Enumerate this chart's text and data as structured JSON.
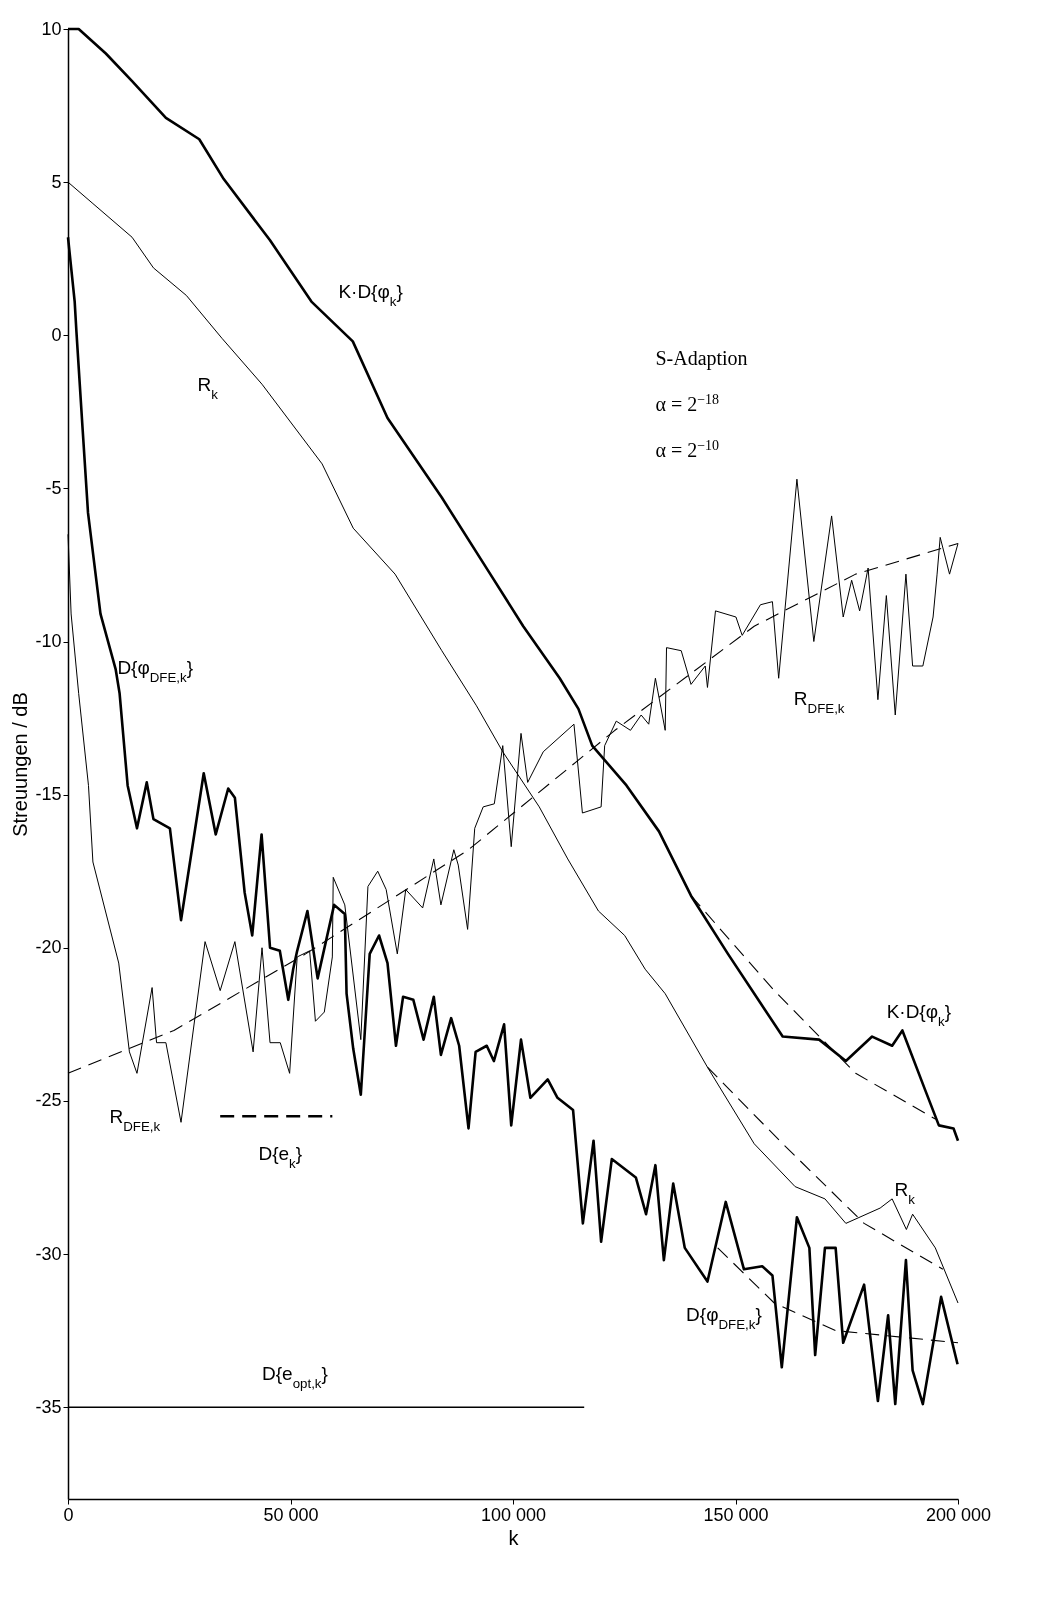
{
  "chart_data": {
    "type": "line",
    "xlabel": "k",
    "ylabel": "Streuungen / dB",
    "xlim": [
      0,
      200000
    ],
    "ylim": [
      -38,
      10
    ],
    "xticks": [
      0,
      {
        "value": 50000,
        "label": "50 000"
      },
      {
        "value": 100000,
        "label": "100 000"
      },
      {
        "value": 150000,
        "label": "150 000"
      },
      {
        "value": 200000,
        "label": "200 000"
      }
    ],
    "yticks": [
      10,
      5,
      0,
      -5,
      -10,
      -15,
      -20,
      -25,
      -30,
      -35
    ],
    "grid": false,
    "series": [
      {
        "name": "K·D{φ$_{k}$}",
        "color": "#000000",
        "line_style": "solid",
        "x": [
          0,
          2400,
          8500,
          14400,
          22000,
          29500,
          35000,
          45400,
          54700,
          64000,
          71800,
          84000,
          94900,
          102300,
          110500,
          114700,
          117800,
          125500,
          132800,
          140000,
          148300,
          160600,
          168800,
          174800,
          180700,
          185200,
          187500,
          192500,
          195700,
          199000,
          200000
        ],
        "values": [
          10,
          10,
          9.2,
          8.3,
          7.1,
          6.4,
          5.1,
          3.1,
          1.1,
          -0.2,
          -2.7,
          -5.3,
          -7.8,
          -9.5,
          -11.2,
          -12.2,
          -13.4,
          -14.7,
          -16.2,
          -18.3,
          -20.2,
          -22.9,
          -23,
          -23.7,
          -22.9,
          -23.2,
          -22.7,
          -24.6,
          -25.8,
          -25.9,
          -26.3
        ]
      },
      {
        "name": "R$_{k}$",
        "color": "#000000",
        "line_style": "solid",
        "x": [
          0,
          5600,
          14400,
          19200,
          26600,
          34600,
          43600,
          57100,
          64100,
          73500,
          84000,
          91800,
          97700,
          105900,
          112300,
          119200,
          125100,
          129700,
          134200,
          143700,
          154200,
          163400,
          170100,
          174800,
          182500,
          185200,
          188400,
          189800,
          194900,
          200000
        ],
        "values": [
          5,
          4.3,
          3.2,
          2.2,
          1.3,
          -0.1,
          -1.6,
          -4.2,
          -6.3,
          -7.8,
          -10.3,
          -12.1,
          -13.6,
          -15.4,
          -17.1,
          -18.8,
          -19.6,
          -20.7,
          -21.5,
          -23.9,
          -26.4,
          -27.8,
          -28.2,
          -29,
          -28.5,
          -28.2,
          -29.2,
          -28.7,
          -29.8,
          -31.6
        ]
      },
      {
        "name": "D{φ$_{DFE,k}$}",
        "color": "#000000",
        "line_style": "solid",
        "x": [
          0,
          1500,
          1900,
          3300,
          4500,
          7300,
          10700,
          11600,
          13400,
          15500,
          17700,
          19200,
          22900,
          25400,
          30500,
          33200,
          36000,
          37500,
          39700,
          41400,
          43500,
          45400,
          47600,
          49500,
          50600,
          51500,
          53800,
          56100,
          59800,
          62200,
          62600,
          64100,
          65800,
          67800,
          69900,
          71800,
          73700,
          75300,
          77600,
          79900,
          82200,
          83800,
          86100,
          87900,
          90000,
          91600,
          94100,
          95700,
          98000,
          99600,
          101800,
          103900,
          107800,
          110000,
          113500,
          115700,
          118100,
          119800,
          122200,
          127600,
          129900,
          132000,
          133900,
          136000,
          138600,
          143700,
          147800,
          151900,
          156000,
          158300,
          160400,
          163800,
          166600,
          167900,
          170100,
          172500,
          174200,
          178900,
          182000,
          184300,
          185900,
          188300,
          189800,
          192100,
          196200,
          199900
        ],
        "values": [
          3.2,
          1.1,
          0.1,
          -3.1,
          -5.8,
          -9.1,
          -10.9,
          -11.7,
          -14.7,
          -16.1,
          -14.6,
          -15.8,
          -16.1,
          -19.1,
          -14.3,
          -16.3,
          -14.8,
          -15.1,
          -18.2,
          -19.6,
          -16.3,
          -20,
          -20.1,
          -21.7,
          -20.7,
          -20.1,
          -18.8,
          -21,
          -18.6,
          -18.9,
          -21.5,
          -23.3,
          -24.8,
          -20.2,
          -19.6,
          -20.5,
          -23.2,
          -21.6,
          -21.7,
          -23,
          -21.6,
          -23.5,
          -22.3,
          -23.2,
          -25.9,
          -23.4,
          -23.2,
          -23.7,
          -22.5,
          -25.8,
          -23,
          -24.9,
          -24.3,
          -24.9,
          -25.3,
          -29,
          -26.3,
          -29.6,
          -26.9,
          -27.5,
          -28.7,
          -27.1,
          -30.2,
          -27.7,
          -29.8,
          -30.9,
          -28.3,
          -30.5,
          -30.4,
          -30.7,
          -33.7,
          -28.8,
          -29.8,
          -33.3,
          -29.8,
          -29.8,
          -32.9,
          -31,
          -34.8,
          -32,
          -34.9,
          -30.2,
          -33.8,
          -34.9,
          -31.4,
          -33.6
        ]
      },
      {
        "name": "R$_{DFE,k}$",
        "color": "#000000",
        "line_style": "solid",
        "x": [
          0,
          700,
          2400,
          4600,
          5600,
          11400,
          13800,
          15500,
          18900,
          19900,
          22000,
          25400,
          30800,
          34200,
          37500,
          41600,
          43600,
          45400,
          47700,
          49800,
          51500,
          54300,
          55600,
          57600,
          59400,
          59600,
          62200,
          65800,
          67400,
          69600,
          71500,
          74000,
          75900,
          79700,
          82200,
          83800,
          86700,
          87700,
          89800,
          91400,
          93300,
          95800,
          97700,
          99600,
          101800,
          103300,
          106800,
          113700,
          115600,
          119800,
          120600,
          123200,
          126400,
          128800,
          130500,
          132000,
          134200,
          134500,
          137800,
          140000,
          143200,
          143700,
          145500,
          150100,
          151500,
          155600,
          158300,
          159700,
          163800,
          167600,
          171600,
          174200,
          176100,
          177900,
          179800,
          182000,
          183900,
          185900,
          188300,
          189800,
          192100,
          194400,
          195300,
          196000,
          198100,
          200000
        ],
        "values": [
          -6.5,
          -9.1,
          -11.7,
          -14.7,
          -17.2,
          -20.5,
          -23.4,
          -24.1,
          -21.3,
          -23.1,
          -23.1,
          -25.7,
          -19.8,
          -21.4,
          -19.8,
          -23.4,
          -20,
          -23.1,
          -23.1,
          -24.1,
          -20.3,
          -20.1,
          -22.4,
          -22.1,
          -20.3,
          -17.7,
          -18.6,
          -23,
          -18,
          -17.5,
          -18.1,
          -20.2,
          -18.1,
          -18.7,
          -17.1,
          -18.6,
          -16.8,
          -17.3,
          -19.4,
          -16.1,
          -15.4,
          -15.3,
          -13.4,
          -16.7,
          -13,
          -14.6,
          -13.6,
          -12.7,
          -15.6,
          -15.4,
          -13.4,
          -12.6,
          -12.9,
          -12.4,
          -12.7,
          -11.2,
          -12.9,
          -10.2,
          -10.3,
          -11.4,
          -10.8,
          -11.5,
          -9,
          -9.2,
          -9.8,
          -8.8,
          -8.7,
          -11.2,
          -4.7,
          -10,
          -5.9,
          -9.2,
          -8,
          -9,
          -7.6,
          -11.9,
          -8.5,
          -12.4,
          -7.8,
          -10.8,
          -10.8,
          -9.2,
          -7.8,
          -6.6,
          -7.8,
          -6.8
        ]
      },
      {
        "name": "D{e$_{k}$}",
        "color": "#000000",
        "line_style": "dashed",
        "x": [
          34200,
          59400
        ],
        "values": [
          -25.5,
          -25.5
        ]
      },
      {
        "name": "D{e$_{opt,k}$}",
        "color": "#000000",
        "line_style": "solid",
        "x": [
          0,
          116000
        ],
        "values": [
          -35,
          -35
        ]
      },
      {
        "color": "#000000",
        "line_style": "dashed",
        "x": [
          140000,
          158700,
          177000,
          195000
        ],
        "values": [
          -18.3,
          -21.4,
          -24.1,
          -25.6
        ]
      },
      {
        "color": "#000000",
        "line_style": "dashed",
        "x": [
          143700,
          160600,
          178900,
          196600
        ],
        "values": [
          -23.9,
          -26.4,
          -29,
          -30.5
        ]
      },
      {
        "color": "#000000",
        "line_style": "dashed",
        "x": [
          146000,
          158700,
          172500,
          200000
        ],
        "values": [
          -29.8,
          -31.6,
          -32.5,
          -32.9
        ]
      },
      {
        "color": "#000000",
        "line_style": "dashed",
        "x": [
          0,
          23800,
          53400,
          90000,
          122900,
          154200,
          177000,
          200000
        ],
        "values": [
          -24.1,
          -22.7,
          -20.2,
          -16.8,
          -12.9,
          -9.5,
          -7.8,
          -6.8
        ]
      }
    ],
    "annotations": [
      "S-Adaption",
      "α = 2$^{−18}$",
      "α = 2$^{−10}$"
    ]
  }
}
